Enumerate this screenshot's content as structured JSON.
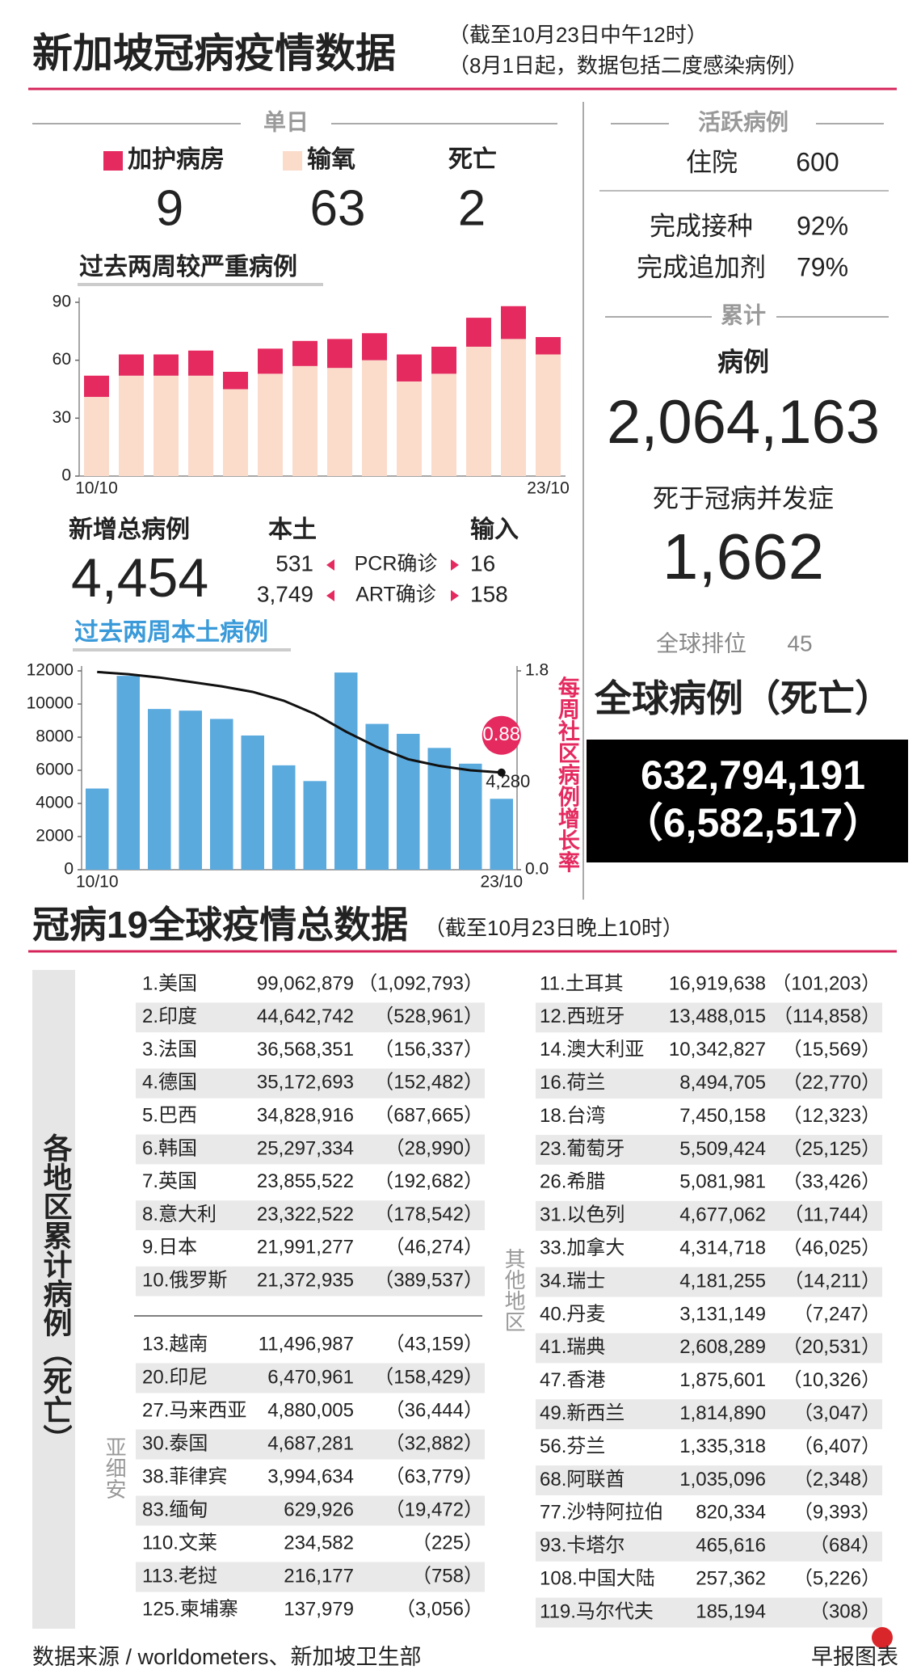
{
  "header": {
    "title": "新加坡冠病疫情数据",
    "notes": [
      "（截至10月23日中午12时）",
      "（8月1日起，数据包括二度感染病例）"
    ]
  },
  "single_day": {
    "title": "单日",
    "icu": 9,
    "oxygen": 63,
    "death_label": "死亡",
    "deaths": 2
  },
  "new_cases": {
    "title": "新增总病例",
    "total": "4,454",
    "local_label": "本土",
    "imported_label": "输入",
    "rows": [
      {
        "local": "531",
        "label": "PCR确诊",
        "imported": "16"
      },
      {
        "local": "3,749",
        "label": "ART确诊",
        "imported": "158"
      }
    ]
  },
  "active": {
    "title": "活跃病例",
    "hospital_label": "住院",
    "hospital": "600",
    "vaccinated_label": "完成接种",
    "vaccinated": "92%",
    "booster_label": "完成追加剂",
    "booster": "79%"
  },
  "cumulative": {
    "title": "累计",
    "cases_label": "病例",
    "cases": "2,064,163",
    "deaths_label": "死于冠病并发症",
    "deaths": "1,662",
    "rank_label": "全球排位",
    "rank": "45"
  },
  "global": {
    "title": "全球病例（死亡）",
    "cases": "632,794,191",
    "deaths": "（6,582,517）"
  },
  "world": {
    "title": "冠病19全球疫情总数据",
    "note": "（截至10月23日晚上10时）",
    "side_label": "各地区累计病例（死亡）",
    "asean_label": "亚细安",
    "others_label": "其他地区",
    "top10": [
      [
        "1.美国",
        "99,062,879",
        "（1,092,793）"
      ],
      [
        "2.印度",
        "44,642,742",
        "（528,961）"
      ],
      [
        "3.法国",
        "36,568,351",
        "（156,337）"
      ],
      [
        "4.德国",
        "35,172,693",
        "（152,482）"
      ],
      [
        "5.巴西",
        "34,828,916",
        "（687,665）"
      ],
      [
        "6.韩国",
        "25,297,334",
        "（28,990）"
      ],
      [
        "7.英国",
        "23,855,522",
        "（192,682）"
      ],
      [
        "8.意大利",
        "23,322,522",
        "（178,542）"
      ],
      [
        "9.日本",
        "21,991,277",
        "（46,274）"
      ],
      [
        "10.俄罗斯",
        "21,372,935",
        "（389,537）"
      ]
    ],
    "asean": [
      [
        "13.越南",
        "11,496,987",
        "（43,159）"
      ],
      [
        "20.印尼",
        "6,470,961",
        "（158,429）"
      ],
      [
        "27.马来西亚",
        "4,880,005",
        "（36,444）"
      ],
      [
        "30.泰国",
        "4,687,281",
        "（32,882）"
      ],
      [
        "38.菲律宾",
        "3,994,634",
        "（63,779）"
      ],
      [
        "83.缅甸",
        "629,926",
        "（19,472）"
      ],
      [
        "110.文莱",
        "234,582",
        "（225）"
      ],
      [
        "113.老挝",
        "216,177",
        "（758）"
      ],
      [
        "125.柬埔寨",
        "137,979",
        "（3,056）"
      ]
    ],
    "others": [
      [
        "11.土耳其",
        "16,919,638",
        "（101,203）"
      ],
      [
        "12.西班牙",
        "13,488,015",
        "（114,858）"
      ],
      [
        "14.澳大利亚",
        "10,342,827",
        "（15,569）"
      ],
      [
        "16.荷兰",
        "8,494,705",
        "（22,770）"
      ],
      [
        "18.台湾",
        "7,450,158",
        "（12,323）"
      ],
      [
        "23.葡萄牙",
        "5,509,424",
        "（25,125）"
      ],
      [
        "26.希腊",
        "5,081,981",
        "（33,426）"
      ],
      [
        "31.以色列",
        "4,677,062",
        "（11,744）"
      ],
      [
        "33.加拿大",
        "4,314,718",
        "（46,025）"
      ],
      [
        "34.瑞士",
        "4,181,255",
        "（14,211）"
      ],
      [
        "40.丹麦",
        "3,131,149",
        "（7,247）"
      ],
      [
        "41.瑞典",
        "2,608,289",
        "（20,531）"
      ],
      [
        "47.香港",
        "1,875,601",
        "（10,326）"
      ],
      [
        "49.新西兰",
        "1,814,890",
        "（3,047）"
      ],
      [
        "56.芬兰",
        "1,335,318",
        "（6,407）"
      ],
      [
        "68.阿联酋",
        "1,035,096",
        "（2,348）"
      ],
      [
        "77.沙特阿拉伯",
        "820,334",
        "（9,393）"
      ],
      [
        "93.卡塔尔",
        "465,616",
        "（684）"
      ],
      [
        "108.中国大陆",
        "257,362",
        "（5,226）"
      ],
      [
        "119.马尔代夫",
        "185,194",
        "（308）"
      ]
    ]
  },
  "footer": {
    "source": "数据来源 / worldometers、新加坡卫生部",
    "credit": "早报图表"
  },
  "chart_data": [
    {
      "type": "bar",
      "stacked": true,
      "title": "过去两周较严重病例",
      "categories": [
        "10/10",
        null,
        null,
        null,
        null,
        null,
        null,
        null,
        null,
        null,
        null,
        null,
        null,
        "23/10"
      ],
      "series": [
        {
          "name": "输氧",
          "color": "#fbdccb",
          "values": [
            41,
            52,
            52,
            52,
            45,
            53,
            57,
            56,
            60,
            49,
            53,
            67,
            71,
            63
          ]
        },
        {
          "name": "加护病房",
          "color": "#e42a5f",
          "values": [
            11,
            11,
            11,
            13,
            9,
            13,
            13,
            15,
            14,
            14,
            14,
            15,
            17,
            9
          ]
        }
      ],
      "ylim": [
        0,
        90
      ],
      "yticks": [
        0,
        30,
        60,
        90
      ]
    },
    {
      "type": "combo",
      "title": "过去两周本土病例",
      "y2_title": "每周社区病例增长率",
      "categories": [
        "10/10",
        null,
        null,
        null,
        null,
        null,
        null,
        null,
        null,
        null,
        null,
        null,
        null,
        "23/10"
      ],
      "series": [
        {
          "type": "bar",
          "color": "#5aaade",
          "values": [
            4900,
            11700,
            9700,
            9600,
            9100,
            8100,
            6300,
            5350,
            11900,
            8800,
            8200,
            7350,
            6400,
            4280
          ],
          "value_labels": [
            null,
            null,
            null,
            null,
            null,
            null,
            null,
            null,
            null,
            null,
            null,
            null,
            null,
            "4,280"
          ]
        },
        {
          "type": "line",
          "axis": "y2",
          "color": "#111111",
          "label_color": "#e42a5f",
          "values": [
            1.79,
            1.77,
            1.74,
            1.7,
            1.66,
            1.61,
            1.53,
            1.41,
            1.25,
            1.11,
            1.0,
            0.94,
            0.9,
            0.88
          ],
          "value_labels": [
            null,
            null,
            null,
            null,
            null,
            null,
            null,
            null,
            null,
            null,
            null,
            null,
            null,
            "0.88"
          ]
        }
      ],
      "ylim": [
        0,
        12000
      ],
      "yticks": [
        0,
        2000,
        4000,
        6000,
        8000,
        10000,
        12000
      ],
      "y2lim": [
        0,
        1.8
      ],
      "y2ticks": [
        {
          "value": 0,
          "label": "0.0"
        },
        1.8
      ]
    }
  ]
}
